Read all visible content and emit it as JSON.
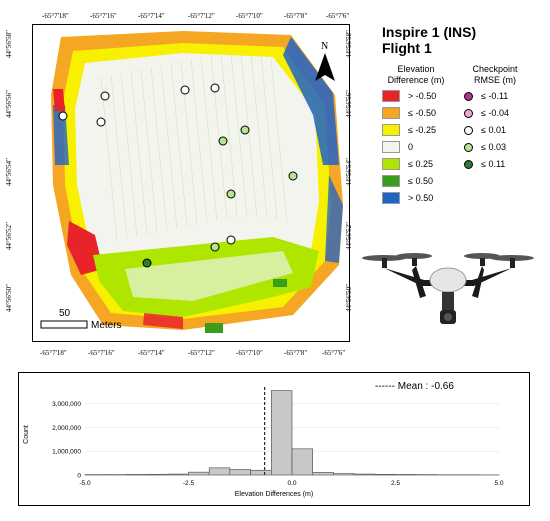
{
  "map": {
    "title_line1": "Inspire 1 (INS)",
    "title_line2": "Flight 1",
    "north_label": "N",
    "scale_value": "50",
    "scale_unit": "Meters",
    "top_ticks": [
      "-65°7'18\"",
      "-65°7'16\"",
      "-65°7'14\"",
      "-65°7'12\"",
      "-65°7'10\"",
      "-65°7'8\"",
      "-65°7'6\""
    ],
    "bottom_ticks": [
      "-65°7'18\"",
      "-65°7'16\"",
      "-65°7'14\"",
      "-65°7'12\"",
      "-65°7'10\"",
      "-65°7'8\"",
      "-65°7'6\""
    ],
    "left_ticks": [
      "44°56'58\"",
      "44°56'56\"",
      "44°56'54\"",
      "44°56'52\"",
      "44°56'50\""
    ],
    "right_ticks": [
      "44°56'58\"",
      "44°56'56\"",
      "44°56'54\"",
      "44°56'52\"",
      "44°56'50\""
    ],
    "colors": {
      "red": "#e8242a",
      "orange": "#f5a623",
      "yellow": "#f7f000",
      "white": "#f4f4ee",
      "lightgreen": "#aee600",
      "green": "#3a9e1c",
      "blue": "#1e63c8"
    }
  },
  "legend_elev": {
    "title": "Elevation Difference (m)",
    "items": [
      {
        "label": "> -0.50",
        "color": "#e8242a"
      },
      {
        "label": "≤ -0.50",
        "color": "#f5a623"
      },
      {
        "label": "≤ -0.25",
        "color": "#f7f000"
      },
      {
        "label": "0",
        "color": "#f4f4ee"
      },
      {
        "label": "≤ 0.25",
        "color": "#aee600"
      },
      {
        "label": "≤ 0.50",
        "color": "#3a9e1c"
      },
      {
        "label": "> 0.50",
        "color": "#1e63c8"
      }
    ]
  },
  "legend_check": {
    "title": "Checkpoint RMSE (m)",
    "items": [
      {
        "label": "≤ -0.11",
        "color": "#b5338a"
      },
      {
        "label": "≤ -0.04",
        "color": "#f2a6d6"
      },
      {
        "label": "≤ 0.01",
        "color": "#ffffff"
      },
      {
        "label": "≤ 0.03",
        "color": "#b6e38f"
      },
      {
        "label": "≤ 0.11",
        "color": "#2e7d32"
      }
    ]
  },
  "chart_data": {
    "type": "bar",
    "title": "",
    "xlabel": "Elevation Differences (m)",
    "ylabel": "Count",
    "x_ticks": [
      "-5.0",
      "-2.5",
      "0.0",
      "2.5",
      "5.0"
    ],
    "y_ticks": [
      "0",
      "1,000,000",
      "2,000,000",
      "3,000,000"
    ],
    "xlim": [
      -5.0,
      5.0
    ],
    "ylim": [
      0,
      3700000
    ],
    "bin_width": 0.5,
    "bin_lefts": [
      -5.0,
      -4.5,
      -4.0,
      -3.5,
      -3.0,
      -2.5,
      -2.0,
      -1.5,
      -1.0,
      -0.5,
      0.0,
      0.5,
      1.0,
      1.5,
      2.0,
      2.5,
      3.0,
      3.5,
      4.0,
      4.5
    ],
    "values": [
      20000,
      20000,
      25000,
      30000,
      40000,
      120000,
      300000,
      230000,
      200000,
      3550000,
      1100000,
      110000,
      60000,
      40000,
      30000,
      25000,
      20000,
      15000,
      15000,
      10000
    ],
    "mean_label": "------ Mean : -0.66",
    "mean_value": -0.66,
    "bar_color": "#c8c8c8"
  }
}
